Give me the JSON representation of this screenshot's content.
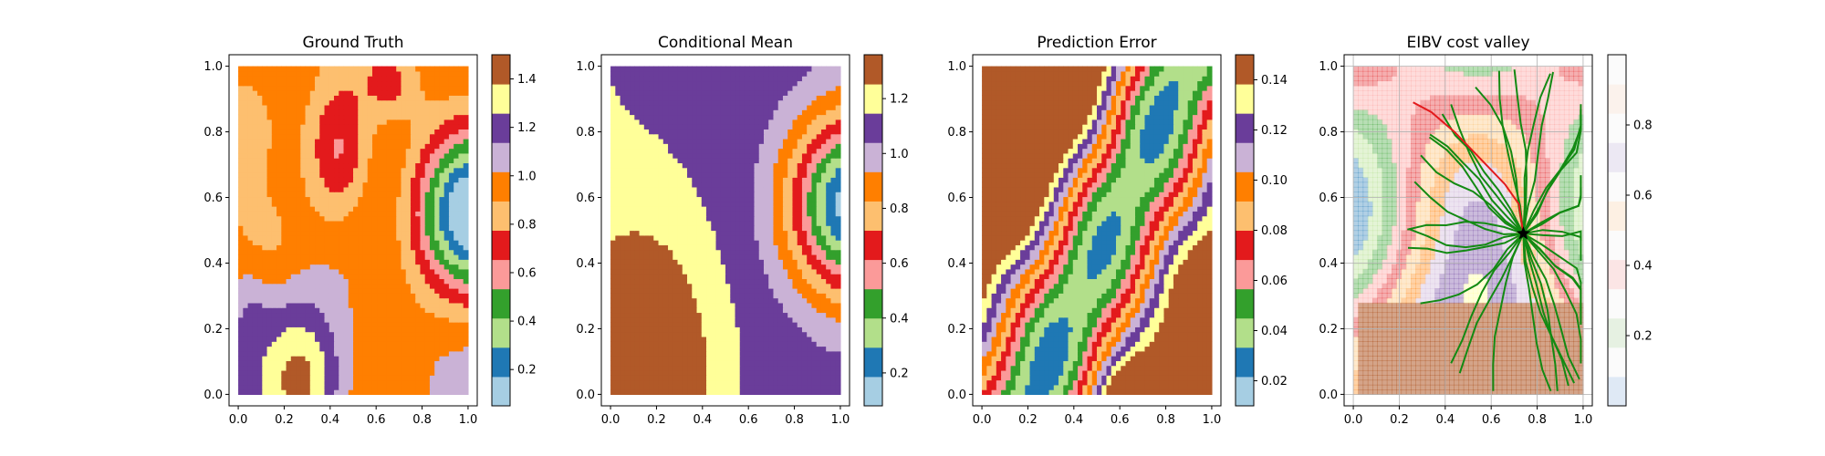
{
  "palette": {
    "paired12": [
      "#a6cee3",
      "#1f78b4",
      "#b2df8a",
      "#33a02c",
      "#fb9a99",
      "#e31a1c",
      "#fdbf6f",
      "#ff7f00",
      "#cab2d6",
      "#6a3d9a",
      "#ffff99",
      "#b15928"
    ],
    "path_color": "#138a13",
    "best_path_color": "#e31a1c",
    "star_color": "#000000"
  },
  "chart_data": [
    {
      "type": "heatmap",
      "title": "Ground Truth",
      "xlabel": "",
      "ylabel": "",
      "xlim": [
        0.0,
        1.0
      ],
      "ylim": [
        0.0,
        1.0
      ],
      "x_ticks": [
        "0.0",
        "0.2",
        "0.4",
        "0.6",
        "0.8",
        "1.0"
      ],
      "y_ticks": [
        "0.0",
        "0.2",
        "0.4",
        "0.6",
        "0.8",
        "1.0"
      ],
      "colorbar": {
        "range": [
          0.05,
          1.5
        ],
        "ticks": [
          "0.2",
          "0.4",
          "0.6",
          "0.8",
          "1.0",
          "1.2",
          "1.4"
        ],
        "tick_values": [
          0.2,
          0.4,
          0.6,
          0.8,
          1.0,
          1.2,
          1.4
        ]
      },
      "field": "ground_truth"
    },
    {
      "type": "heatmap",
      "title": "Conditional Mean",
      "xlabel": "",
      "ylabel": "",
      "xlim": [
        0.0,
        1.0
      ],
      "ylim": [
        0.0,
        1.0
      ],
      "x_ticks": [
        "0.0",
        "0.2",
        "0.4",
        "0.6",
        "0.8",
        "1.0"
      ],
      "y_ticks": [
        "0.0",
        "0.2",
        "0.4",
        "0.6",
        "0.8",
        "1.0"
      ],
      "colorbar": {
        "range": [
          0.08,
          1.36
        ],
        "ticks": [
          "0.2",
          "0.4",
          "0.6",
          "0.8",
          "1.0",
          "1.2"
        ],
        "tick_values": [
          0.2,
          0.4,
          0.6,
          0.8,
          1.0,
          1.2
        ]
      },
      "field": "conditional_mean"
    },
    {
      "type": "heatmap",
      "title": "Prediction Error",
      "xlabel": "",
      "ylabel": "",
      "xlim": [
        0.0,
        1.0
      ],
      "ylim": [
        0.0,
        1.0
      ],
      "x_ticks": [
        "0.0",
        "0.2",
        "0.4",
        "0.6",
        "0.8",
        "1.0"
      ],
      "y_ticks": [
        "0.0",
        "0.2",
        "0.4",
        "0.6",
        "0.8",
        "1.0"
      ],
      "colorbar": {
        "range": [
          0.01,
          0.15
        ],
        "ticks": [
          "0.02",
          "0.04",
          "0.06",
          "0.08",
          "0.10",
          "0.12",
          "0.14"
        ],
        "tick_values": [
          0.02,
          0.04,
          0.06,
          0.08,
          0.1,
          0.12,
          0.14
        ]
      },
      "field": "prediction_error"
    },
    {
      "type": "heatmap",
      "title": "EIBV cost valley",
      "xlabel": "",
      "ylabel": "",
      "xlim": [
        0.0,
        1.0
      ],
      "ylim": [
        0.0,
        1.0
      ],
      "grid": true,
      "x_ticks": [
        "0.0",
        "0.2",
        "0.4",
        "0.6",
        "0.8",
        "1.0"
      ],
      "y_ticks": [
        "0.0",
        "0.2",
        "0.4",
        "0.6",
        "0.8",
        "1.0"
      ],
      "colorbar": {
        "range": [
          0.0,
          1.0
        ],
        "ticks": [
          "0.2",
          "0.4",
          "0.6",
          "0.8"
        ],
        "tick_values": [
          0.2,
          0.4,
          0.6,
          0.8
        ],
        "pale": true
      },
      "field": "eibv_cost",
      "current_location": [
        0.74,
        0.49
      ],
      "best_path": [
        [
          0.74,
          0.49
        ],
        [
          0.72,
          0.58
        ],
        [
          0.66,
          0.64
        ],
        [
          0.55,
          0.72
        ],
        [
          0.44,
          0.8
        ],
        [
          0.34,
          0.86
        ],
        [
          0.26,
          0.89
        ]
      ]
    }
  ]
}
